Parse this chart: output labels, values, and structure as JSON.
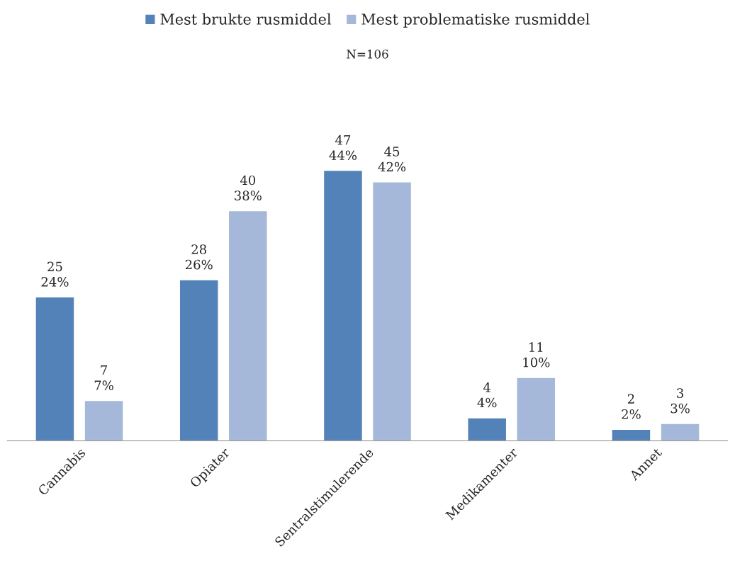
{
  "chart_data": {
    "type": "bar",
    "subtitle": "N=106",
    "categories": [
      "Cannabis",
      "Opiater",
      "Sentralstimulerende",
      "Medikamenter",
      "Annet"
    ],
    "series": [
      {
        "name": "Mest brukte rusmiddel",
        "color": "#5282b7",
        "values": [
          25,
          28,
          47,
          4,
          2
        ],
        "value_labels": [
          "25\n24%",
          "28\n26%",
          "47\n44%",
          "4\n4%",
          "2\n2%"
        ]
      },
      {
        "name": "Mest problematiske rusmiddel",
        "color": "#a5b8d9",
        "values": [
          7,
          40,
          45,
          11,
          3
        ],
        "value_labels": [
          "7\n7%",
          "40\n38%",
          "45\n42%",
          "11\n10%",
          "3\n3%"
        ]
      }
    ],
    "legend": "top",
    "grid": false
  }
}
